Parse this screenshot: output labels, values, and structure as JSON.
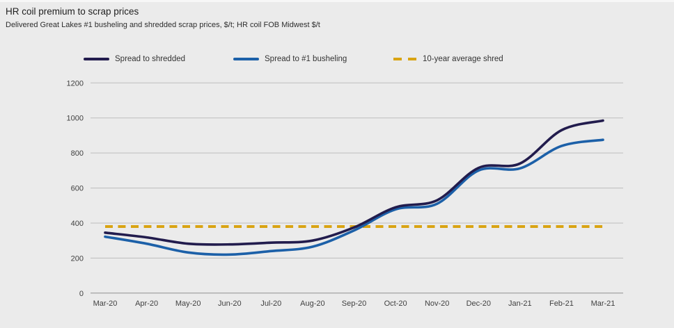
{
  "chart_data": {
    "type": "line",
    "title": "HR coil premium to scrap prices",
    "subtitle": "Delivered Great Lakes #1 busheling and shredded scrap prices, $/t; HR coil FOB Midwest $/t",
    "categories": [
      "Mar-20",
      "Apr-20",
      "May-20",
      "Jun-20",
      "Jul-20",
      "Aug-20",
      "Sep-20",
      "Oct-20",
      "Nov-20",
      "Dec-20",
      "Jan-21",
      "Feb-21",
      "Mar-21"
    ],
    "series": [
      {
        "name": "Spread to shredded",
        "color": "#221c4d",
        "line_style": "solid",
        "values": [
          345,
          318,
          282,
          278,
          288,
          300,
          375,
          490,
          530,
          715,
          740,
          930,
          985
        ]
      },
      {
        "name": "Spread to #1 busheling",
        "color": "#1c60a8",
        "line_style": "solid",
        "values": [
          322,
          282,
          232,
          220,
          240,
          265,
          358,
          478,
          510,
          700,
          712,
          840,
          875
        ]
      },
      {
        "name": "10-year average shred",
        "color": "#d9a413",
        "line_style": "dashed",
        "values": [
          380,
          380,
          380,
          380,
          380,
          380,
          380,
          380,
          380,
          380,
          380,
          380,
          380
        ]
      }
    ],
    "xlabel": "",
    "ylabel": "",
    "ylim": [
      0,
      1200
    ],
    "ytick_step": 200,
    "yticks": [
      0,
      200,
      400,
      600,
      800,
      1000,
      1200
    ],
    "grid": true,
    "legend_position": "top"
  },
  "colors": {
    "background": "#ebebeb",
    "gridline": "#bdbdbd",
    "zero_line": "#8f8f8f",
    "tick_text": "#404040",
    "title_text": "#1f1f1f"
  }
}
